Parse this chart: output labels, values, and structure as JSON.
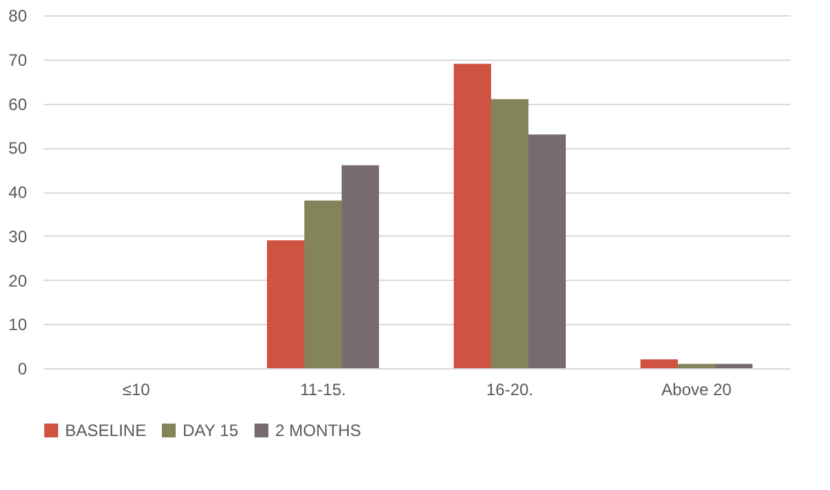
{
  "chart_data": {
    "type": "bar",
    "categories": [
      "≤10",
      "11-15.",
      "16-20.",
      "Above 20"
    ],
    "series": [
      {
        "name": "BASELINE",
        "color": "#cf5340",
        "values": [
          0,
          29,
          69,
          2
        ]
      },
      {
        "name": "DAY 15",
        "color": "#84845a",
        "values": [
          0,
          38,
          61,
          1
        ]
      },
      {
        "name": "2 MONTHS",
        "color": "#786b6f",
        "values": [
          0,
          46,
          53,
          1
        ]
      }
    ],
    "ylim": [
      0,
      80
    ],
    "yticks": [
      0,
      10,
      20,
      30,
      40,
      50,
      60,
      70,
      80
    ],
    "grid": "y",
    "legend": "bottom"
  }
}
